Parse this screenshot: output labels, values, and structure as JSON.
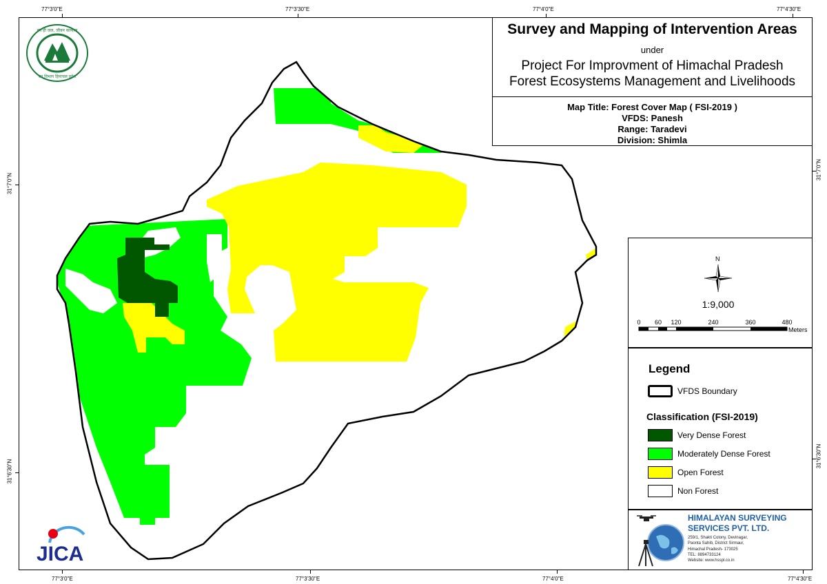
{
  "map": {
    "coords_top": [
      "77°3'0\"E",
      "77°3'30\"E",
      "77°4'0\"E",
      "77°4'30\"E"
    ],
    "coords_bottom": [
      "77°3'0\"E",
      "77°3'30\"E",
      "77°4'0\"E",
      "77°4'30\"E"
    ],
    "coords_left": [
      "31°7'0\"N",
      "31°6'30\"N"
    ],
    "coords_right": [
      "31°7'0\"N",
      "31°6'30\"N"
    ]
  },
  "title": {
    "main": "Survey and Mapping of Intervention Areas",
    "under": "under",
    "project_line1": "Project For Improvment of Himachal Pradesh",
    "project_line2": "Forest Ecosystems Management and Livelihoods",
    "map_title": "Map Title: Forest Cover Map ( FSI-2019 )",
    "vfds": "VFDS: Panesh",
    "range": "Range: Taradevi",
    "division": "Division: Shimla"
  },
  "scale": {
    "north": "N",
    "ratio": "1:9,000",
    "ticks": [
      "0",
      "60",
      "120",
      "240",
      "360",
      "480"
    ],
    "unit": "Meters"
  },
  "legend": {
    "title": "Legend",
    "boundary_label": "VFDS Boundary",
    "classification_title": "Classification (FSI-2019)",
    "items": [
      {
        "label": "Very Dense Forest",
        "color": "#005700"
      },
      {
        "label": "Moderately Dense Forest",
        "color": "#00ff00"
      },
      {
        "label": "Open Forest",
        "color": "#ffff00"
      },
      {
        "label": "Non Forest",
        "color": "#ffffff"
      }
    ]
  },
  "company": {
    "name_line1": "HIMALAYAN SURVEYING",
    "name_line2": "SERVICES PVT. LTD.",
    "address": [
      "259/1, Shakti Colony, Devinagar,",
      "Paonta Sahib, District Sirmaur,",
      "Himachal Pradesh- 173025",
      "TEL: 8894733124",
      "Website: www.hsspl.co.in"
    ]
  },
  "logos": {
    "top_left_text_upper": "वन ही जल, जीवन कल्याण",
    "top_left_text_lower": "वन विभाग हिमाचल प्रदेश",
    "jica_text": "JICA"
  },
  "colors": {
    "very_dense": "#005700",
    "moderately_dense": "#00ff00",
    "open": "#ffff00",
    "non_forest": "#ffffff",
    "company_blue": "#1e5fa8"
  }
}
